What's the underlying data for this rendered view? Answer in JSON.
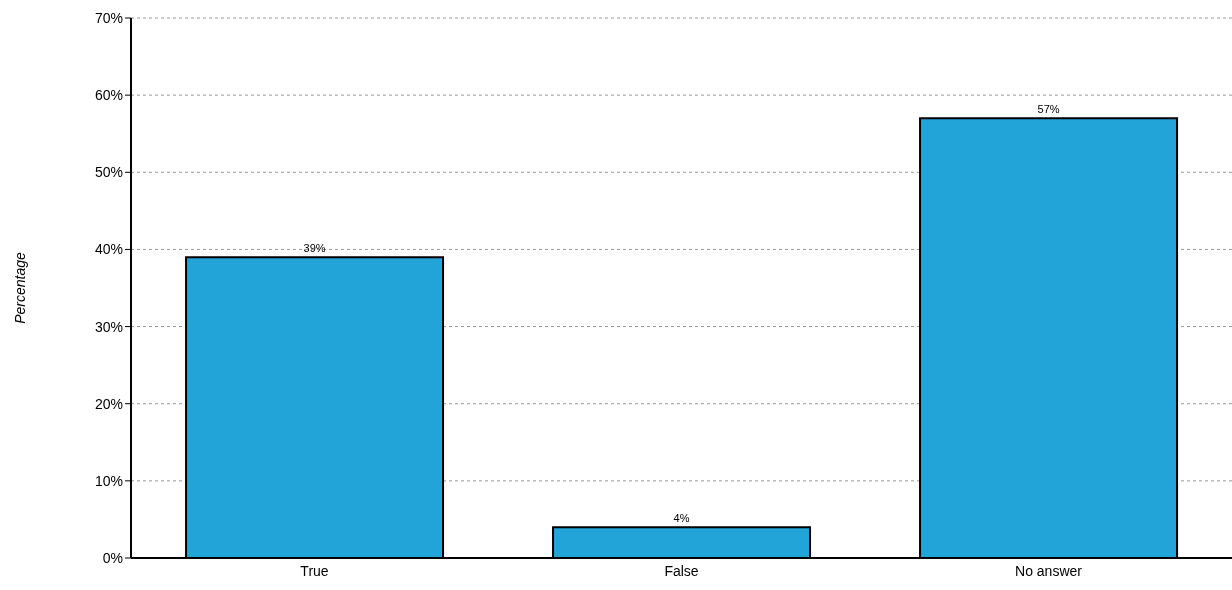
{
  "chart_data": {
    "type": "bar",
    "ylabel": "Percentage",
    "categories": [
      "True",
      "False",
      "No answer"
    ],
    "values": [
      39,
      4,
      57
    ],
    "color": "#22a4d9",
    "value_labels": [
      "39%",
      "4%",
      "57%"
    ],
    "ylim": [
      0,
      70
    ],
    "yticks": [
      {
        "value": 0,
        "label": "0%"
      },
      {
        "value": 10,
        "label": "10%"
      },
      {
        "value": 20,
        "label": "20%"
      },
      {
        "value": 30,
        "label": "30%"
      },
      {
        "value": 40,
        "label": "40%"
      },
      {
        "value": 50,
        "label": "50%"
      },
      {
        "value": 60,
        "label": "60%"
      },
      {
        "value": 70,
        "label": "70%"
      }
    ],
    "grid": "y",
    "legend": false
  }
}
